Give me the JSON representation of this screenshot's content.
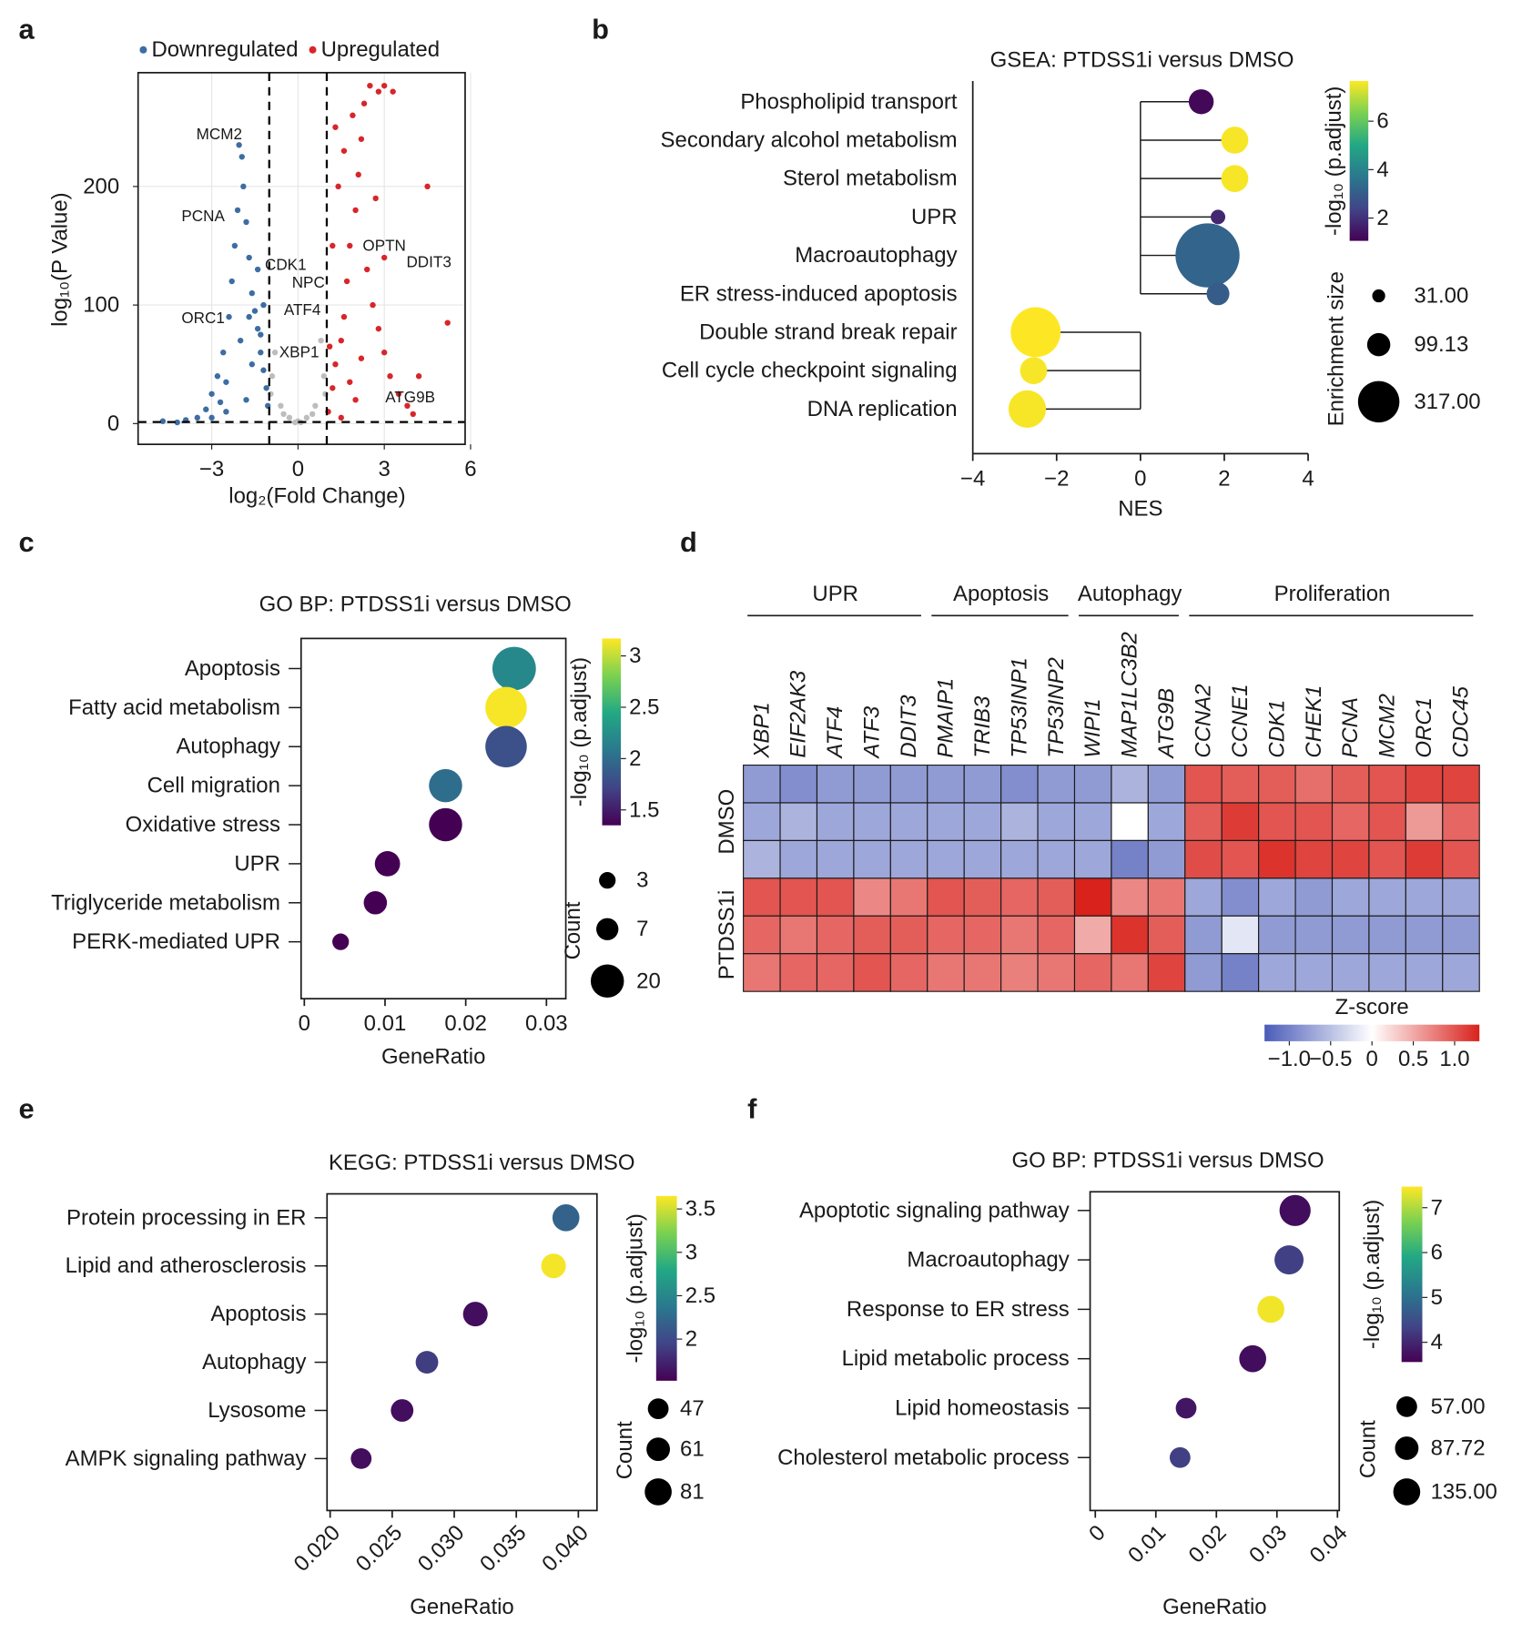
{
  "chart_data": [
    {
      "type": "scatter",
      "panel": "a",
      "xlabel": "log₂(Fold Change)",
      "ylabel": "log₁₀(P Value)",
      "xlim": [
        -5.56,
        5.81
      ],
      "xticks": [
        {
          "value": -3,
          "label": "−3"
        },
        0,
        3,
        6
      ],
      "ylim": [
        -17.5,
        296
      ],
      "yticks": [
        0,
        100,
        200
      ],
      "grid": true,
      "legend": "top",
      "thresholds": {
        "x": [
          -1,
          1
        ],
        "y": 1.3
      },
      "series": [
        {
          "name": "Downregulated",
          "color": "#3d6da2",
          "x": [
            -4.7,
            -4.2,
            -3.9,
            -3.5,
            -3.2,
            -3.0,
            -2.8,
            -2.6,
            -2.5,
            -2.4,
            -2.3,
            -2.2,
            -2.1,
            -2.05,
            -1.95,
            -1.9,
            -1.8,
            -1.7,
            -1.6,
            -1.5,
            -1.4,
            -1.3,
            -1.2,
            -1.1,
            -1.05,
            -1.6,
            -2.0,
            -1.8,
            -2.5,
            -3.0,
            -1.4,
            -1.2,
            -1.7,
            -1.3,
            -2.7
          ],
          "y": [
            2,
            1,
            3,
            5,
            12,
            25,
            40,
            60,
            35,
            90,
            120,
            150,
            180,
            235,
            225,
            200,
            170,
            140,
            110,
            95,
            80,
            60,
            45,
            30,
            15,
            50,
            70,
            20,
            10,
            5,
            130,
            100,
            90,
            75,
            18
          ]
        },
        {
          "name": "Upregulated",
          "color": "#d7262b",
          "x": [
            1.05,
            1.2,
            1.3,
            1.5,
            1.6,
            1.7,
            1.8,
            2.0,
            2.1,
            2.2,
            2.3,
            2.5,
            2.8,
            3.0,
            3.3,
            1.4,
            1.6,
            1.9,
            2.4,
            2.6,
            2.8,
            3.0,
            3.2,
            3.5,
            3.8,
            4.0,
            4.5,
            5.2,
            4.2,
            2.0,
            1.5,
            3.0,
            2.7,
            1.2,
            1.3,
            1.1,
            2.2,
            1.8
          ],
          "y": [
            10,
            30,
            50,
            70,
            90,
            120,
            150,
            180,
            210,
            240,
            270,
            285,
            280,
            285,
            280,
            200,
            230,
            260,
            130,
            100,
            80,
            60,
            40,
            25,
            15,
            8,
            200,
            85,
            40,
            20,
            5,
            140,
            190,
            150,
            250,
            65,
            55,
            35
          ]
        },
        {
          "color": "#bdbdbd",
          "x": [
            0,
            -0.3,
            0.3,
            -0.6,
            0.6,
            -0.9,
            0.9,
            -0.8,
            0.8,
            -0.5,
            0.5,
            0.1,
            -0.1,
            -0.95,
            0.95
          ],
          "y": [
            2,
            5,
            5,
            15,
            15,
            40,
            40,
            60,
            70,
            8,
            8,
            1,
            1,
            25,
            25
          ]
        }
      ],
      "annotations": [
        {
          "text": "MCM2",
          "x": -2.74,
          "y": 244,
          "color": "#3d6da2"
        },
        {
          "text": "PCNA",
          "x": -3.3,
          "y": 175,
          "color": "#3d6da2"
        },
        {
          "text": "CDK1",
          "x": -0.43,
          "y": 134,
          "color": "#3d6da2"
        },
        {
          "text": "ORC1",
          "x": -3.3,
          "y": 89,
          "color": "#3d6da2"
        },
        {
          "text": "OPTN",
          "x": 3.0,
          "y": 150,
          "color": "#d7262b"
        },
        {
          "text": "NPC",
          "x": 0.36,
          "y": 119,
          "color": "#d7262b"
        },
        {
          "text": "DDIT3",
          "x": 4.55,
          "y": 136,
          "color": "#d7262b"
        },
        {
          "text": "ATF4",
          "x": 0.15,
          "y": 96,
          "color": "#d7262b"
        },
        {
          "text": "XBP1",
          "x": 0.04,
          "y": 60,
          "color": "#d7262b"
        },
        {
          "text": "ATG9B",
          "x": 3.9,
          "y": 22,
          "color": "#d7262b"
        }
      ]
    },
    {
      "type": "lollipop",
      "panel": "b",
      "title": "GSEA: PTDSS1i versus DMSO",
      "xlabel": "NES",
      "categories": [
        "Phospholipid transport",
        "Secondary alcohol metabolism",
        "Sterol metabolism",
        "UPR",
        "Macroautophagy",
        "ER stress-induced apoptosis",
        "Double strand break repair",
        "Cell cycle checkpoint signaling",
        "DNA replication"
      ],
      "label_colors": [
        "#1a1a1a",
        "#1a1a1a",
        "#1a1a1a",
        "#e8202a",
        "#e8202a",
        "#e8202a",
        "#1a1a1a",
        "#1a1a1a",
        "#1a1a1a"
      ],
      "values": [
        1.45,
        2.25,
        2.25,
        1.85,
        1.6,
        1.85,
        -2.5,
        -2.55,
        -2.7
      ],
      "color_values": [
        1.2,
        7.6,
        7.6,
        1.8,
        3.2,
        3.0,
        7.7,
        7.6,
        7.6
      ],
      "sizes": [
        115,
        135,
        135,
        39,
        760,
        96,
        460,
        135,
        260
      ],
      "xlim": [
        -4,
        4
      ],
      "xticks": [
        {
          "value": -4,
          "label": "−4"
        },
        {
          "value": -2,
          "label": "−2"
        },
        0,
        2,
        4
      ],
      "colormap": "viridis",
      "color_label": "-log₁₀ (p.adjust)",
      "color_lim": [
        1.06,
        7.66
      ],
      "color_ticks": [
        2,
        4,
        6
      ],
      "size_label": "Enrichment size",
      "size_ticks": [
        {
          "value": 31,
          "label": "31.00"
        },
        {
          "value": 99.13,
          "label": "99.13"
        },
        {
          "value": 317,
          "label": "317.00"
        }
      ]
    },
    {
      "type": "dotplot",
      "panel": "c",
      "title": "GO BP: PTDSS1i versus DMSO",
      "xlabel": "GeneRatio",
      "categories": [
        "Apoptosis",
        "Fatty acid metabolism",
        "Autophagy",
        "Cell migration",
        "Oxidative stress",
        "UPR",
        "Triglyceride metabolism",
        "PERK-mediated UPR"
      ],
      "label_colors": [
        "#e8202a",
        "#1a1a1a",
        "#e8202a",
        "#1a1a1a",
        "#1a1a1a",
        "#e8202a",
        "#1a1a1a",
        "#e8202a"
      ],
      "values": [
        0.026,
        0.025,
        0.025,
        0.0175,
        0.0175,
        0.0103,
        0.0088,
        0.0045
      ],
      "color_values": [
        2.2,
        3.15,
        1.8,
        2.0,
        1.35,
        1.35,
        1.35,
        1.35
      ],
      "sizes": [
        38,
        34,
        34,
        20,
        20,
        10,
        8,
        3
      ],
      "xlim": [
        -0.0004,
        0.0324
      ],
      "xticks": [
        0,
        0.01,
        0.02,
        0.03
      ],
      "colormap": "viridis",
      "color_label": "-log₁₀ (p.adjust)",
      "color_lim": [
        1.35,
        3.17
      ],
      "color_ticks": [
        1.5,
        2,
        2.5,
        3
      ],
      "size_label": "Count",
      "size_ticks": [
        3,
        7,
        20
      ]
    },
    {
      "type": "heatmap",
      "panel": "d",
      "colorbar_title": "Z-score",
      "groups": [
        {
          "name": "UPR",
          "columns": [
            "XBP1",
            "EIF2AK3",
            "ATF4",
            "ATF3",
            "DDIT3"
          ]
        },
        {
          "name": "Apoptosis",
          "columns": [
            "PMAIP1",
            "TRIB3",
            "TP53INP1",
            "TP53INP2"
          ]
        },
        {
          "name": "Autophagy",
          "columns": [
            "WIPI1",
            "MAP1LC3B2",
            "ATG9B"
          ]
        },
        {
          "name": "Proliferation",
          "columns": [
            "CCNA2",
            "CCNE1",
            "CDK1",
            "CHEK1",
            "PCNA",
            "MCM2",
            "ORC1",
            "CDC45"
          ]
        }
      ],
      "row_groups": [
        {
          "name": "DMSO",
          "values": [
            [
              -0.8,
              -0.9,
              -0.8,
              -0.8,
              -0.8,
              -0.8,
              -0.8,
              -0.9,
              -0.8,
              -0.8,
              -0.6,
              -0.8,
              1.0,
              0.95,
              0.95,
              0.85,
              0.95,
              1.0,
              1.1,
              1.1
            ],
            [
              -0.7,
              -0.6,
              -0.7,
              -0.7,
              -0.7,
              -0.7,
              -0.7,
              -0.6,
              -0.7,
              -0.7,
              0.0,
              -0.7,
              0.95,
              1.15,
              1.0,
              1.0,
              0.9,
              1.0,
              0.6,
              0.9
            ],
            [
              -0.6,
              -0.7,
              -0.7,
              -0.7,
              -0.7,
              -0.7,
              -0.7,
              -0.7,
              -0.7,
              -0.7,
              -1.0,
              -0.8,
              1.05,
              1.0,
              1.2,
              1.1,
              1.1,
              1.0,
              1.15,
              1.0
            ]
          ]
        },
        {
          "name": "PTDSS1i",
          "values": [
            [
              1.0,
              1.0,
              1.0,
              0.7,
              0.8,
              1.0,
              0.95,
              0.9,
              0.95,
              1.3,
              0.7,
              0.8,
              -0.7,
              -0.9,
              -0.7,
              -0.8,
              -0.7,
              -0.7,
              -0.7,
              -0.7
            ],
            [
              0.9,
              0.8,
              0.9,
              0.95,
              0.95,
              0.9,
              0.9,
              0.8,
              0.9,
              0.5,
              1.2,
              0.95,
              -0.8,
              -0.2,
              -0.8,
              -0.8,
              -0.8,
              -0.8,
              -0.8,
              -0.8
            ],
            [
              0.8,
              0.9,
              0.9,
              1.0,
              0.9,
              0.8,
              0.8,
              0.75,
              0.8,
              0.9,
              0.8,
              1.1,
              -0.8,
              -1.0,
              -0.7,
              -0.7,
              -0.7,
              -0.7,
              -0.7,
              -0.7
            ]
          ]
        }
      ],
      "zlim": [
        -1.3,
        1.3
      ],
      "colors": [
        "#4b5cb8",
        "#ffffff",
        "#d9221c"
      ],
      "zticks": [
        {
          "value": -1,
          "label": "−1.0"
        },
        {
          "value": -0.5,
          "label": "−0.5"
        },
        0,
        0.5,
        {
          "value": 1,
          "label": "1.0"
        }
      ]
    },
    {
      "type": "dotplot",
      "panel": "e",
      "title": "KEGG: PTDSS1i versus DMSO",
      "xlabel": "GeneRatio",
      "categories": [
        "Protein processing in ER",
        "Lipid and atherosclerosis",
        "Apoptosis",
        "Autophagy",
        "Lysosome",
        "AMPK signaling pathway"
      ],
      "label_colors": [
        "#e8202a",
        "#1a1a1a",
        "#e8202a",
        "#e8202a",
        "#1a1a1a",
        "#1a1a1a"
      ],
      "values": [
        0.039,
        0.038,
        0.0317,
        0.0278,
        0.0258,
        0.0225
      ],
      "color_values": [
        2.2,
        3.62,
        1.6,
        1.9,
        1.6,
        1.6
      ],
      "sizes": [
        81,
        67,
        67,
        56,
        56,
        47
      ],
      "xlim": [
        0.01975,
        0.0415
      ],
      "xticks": [
        {
          "value": 0.02,
          "label": "0.020"
        },
        0.025,
        {
          "value": 0.03,
          "label": "0.030"
        },
        0.035,
        {
          "value": 0.04,
          "label": "0.040"
        }
      ],
      "colormap": "viridis",
      "color_label": "-log₁₀ (p.adjust)",
      "color_lim": [
        1.52,
        3.65
      ],
      "color_ticks": [
        2,
        2.5,
        3,
        3.5
      ],
      "size_label": "Count",
      "size_ticks": [
        47,
        61,
        81
      ]
    },
    {
      "type": "dotplot",
      "panel": "f",
      "title": "GO BP: PTDSS1i versus DMSO",
      "xlabel": "GeneRatio",
      "categories": [
        "Apoptotic signaling pathway",
        "Macroautophagy",
        "Response to ER stress",
        "Lipid metabolic process",
        "Lipid homeostasis",
        "Cholesterol metabolic process"
      ],
      "label_colors": [
        "#e8202a",
        "#e8202a",
        "#e8202a",
        "#1a1a1a",
        "#1a1a1a",
        "#1a1a1a"
      ],
      "values": [
        0.033,
        0.032,
        0.029,
        0.026,
        0.015,
        0.014
      ],
      "color_values": [
        3.7,
        4.3,
        7.4,
        3.7,
        3.8,
        4.3
      ],
      "sizes": [
        206,
        169,
        135,
        135,
        57,
        57
      ],
      "xlim": [
        -0.00086,
        0.0403
      ],
      "xticks": [
        0,
        0.01,
        0.02,
        0.03,
        0.04
      ],
      "colormap": "viridis",
      "color_label": "-log₁₀ (p.adjust)",
      "color_lim": [
        3.56,
        7.47
      ],
      "color_ticks": [
        4,
        5,
        6,
        7
      ],
      "size_label": "Count",
      "size_ticks": [
        {
          "value": 57,
          "label": "57.00"
        },
        {
          "value": 87.72,
          "label": "87.72"
        },
        {
          "value": 135,
          "label": "135.00"
        }
      ]
    }
  ]
}
